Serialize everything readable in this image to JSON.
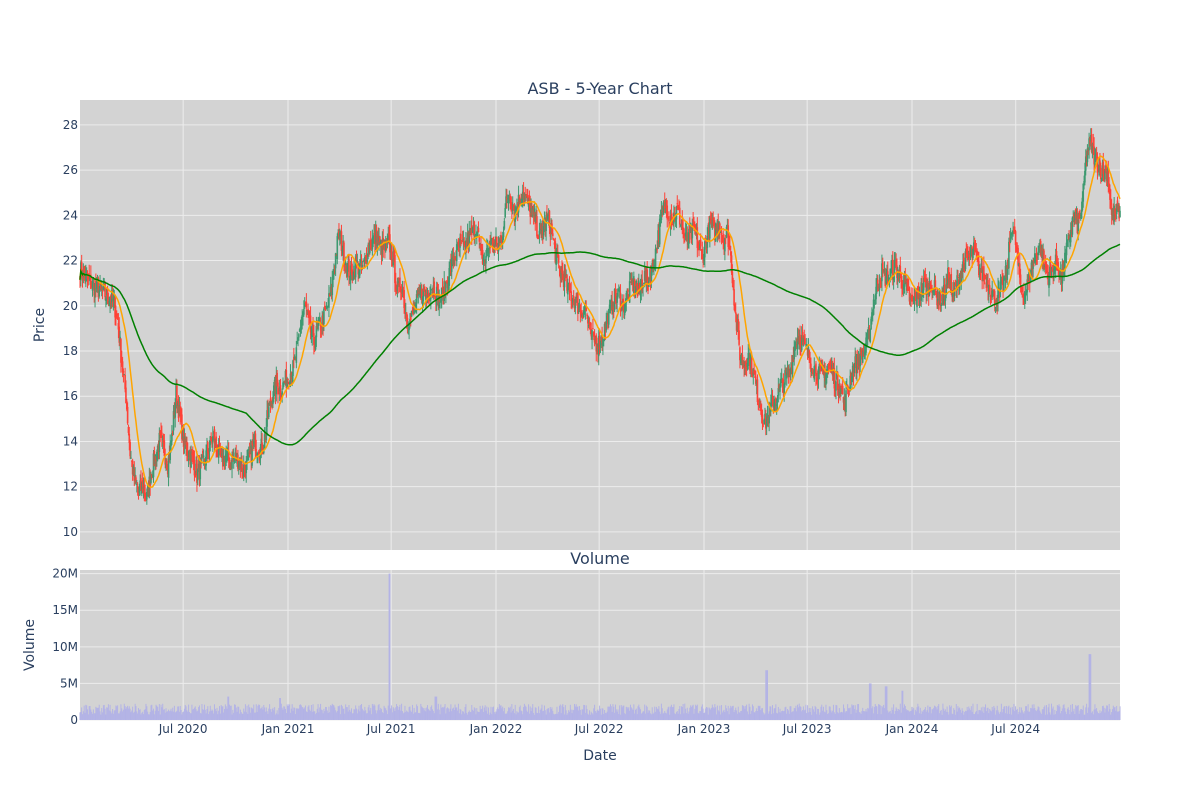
{
  "colors": {
    "plot_bg": "#d3d3d3",
    "grid": "#ececec",
    "increasing": "#3d9970",
    "decreasing": "#ff4136",
    "ma_short": "#ffa500",
    "ma_long": "#008000",
    "volume": "#b3b3e6",
    "text": "#2a3f5f"
  },
  "chart_data": [
    {
      "type": "candlestick",
      "title": "ASB - 5-Year Chart",
      "ylabel": "Price",
      "xlim": [
        "2020-01-02",
        "2024-12-31"
      ],
      "ylim": [
        9.2,
        29.1
      ],
      "yticks": [
        10,
        12,
        14,
        16,
        18,
        20,
        22,
        24,
        26,
        28
      ],
      "grid": true,
      "series": [
        {
          "kind": "ohlc_from_closes",
          "closes_weekly": [
            21.6,
            21.3,
            21.1,
            20.9,
            20.8,
            20.6,
            20.5,
            20.4,
            20.2,
            19.4,
            17.5,
            16.0,
            13.5,
            12.3,
            11.8,
            12.0,
            11.5,
            12.6,
            13.3,
            14.0,
            13.7,
            13.0,
            14.2,
            16.2,
            15.0,
            13.8,
            13.5,
            13.2,
            12.5,
            12.9,
            13.3,
            13.8,
            14.2,
            13.5,
            13.1,
            13.4,
            13.0,
            13.3,
            13.2,
            12.8,
            12.9,
            13.5,
            14.0,
            13.6,
            13.9,
            15.2,
            16.0,
            16.5,
            16.3,
            16.6,
            17.0,
            17.2,
            18.0,
            19.5,
            20.0,
            19.0,
            18.4,
            19.0,
            19.3,
            19.8,
            20.5,
            22.0,
            23.2,
            22.5,
            21.7,
            21.3,
            21.9,
            21.6,
            21.8,
            22.6,
            22.9,
            23.0,
            22.6,
            22.5,
            22.8,
            22.0,
            20.5,
            21.0,
            19.7,
            19.3,
            19.8,
            20.3,
            20.6,
            20.4,
            20.9,
            20.7,
            20.3,
            20.5,
            21.2,
            21.8,
            22.3,
            22.7,
            22.5,
            23.0,
            23.2,
            23.5,
            22.2,
            22.0,
            22.8,
            22.7,
            22.6,
            23.0,
            24.5,
            25.0,
            24.2,
            24.6,
            25.1,
            24.6,
            24.2,
            23.8,
            23.0,
            23.5,
            23.9,
            23.2,
            22.1,
            21.5,
            21.2,
            20.6,
            20.4,
            20.1,
            19.7,
            20.0,
            18.8,
            18.5,
            18.3,
            18.6,
            19.2,
            19.8,
            20.3,
            20.5,
            20.0,
            20.4,
            20.9,
            21.0,
            20.6,
            21.3,
            21.0,
            21.6,
            22.6,
            23.7,
            24.5,
            24.1,
            23.8,
            24.3,
            23.6,
            22.9,
            23.0,
            23.4,
            22.7,
            22.2,
            22.9,
            23.6,
            23.3,
            23.8,
            22.9,
            23.3,
            21.8,
            19.5,
            17.9,
            17.4,
            17.8,
            17.2,
            16.3,
            15.5,
            14.8,
            15.2,
            15.8,
            16.0,
            16.5,
            16.8,
            17.0,
            18.2,
            18.7,
            18.4,
            18.0,
            17.5,
            17.2,
            17.0,
            16.9,
            17.3,
            17.2,
            16.5,
            16.6,
            15.6,
            16.5,
            17.2,
            17.5,
            17.8,
            18.0,
            18.9,
            20.2,
            21.1,
            21.5,
            21.2,
            21.4,
            21.7,
            21.5,
            21.1,
            20.7,
            20.1,
            20.3,
            20.6,
            20.9,
            20.8,
            21.0,
            20.5,
            20.2,
            20.6,
            21.4,
            20.3,
            21.0,
            21.6,
            22.0,
            22.1,
            22.4,
            21.8,
            21.4,
            21.2,
            20.8,
            20.3,
            20.5,
            20.9,
            21.6,
            23.6,
            22.8,
            21.1,
            20.5,
            21.0,
            21.8,
            22.4,
            22.6,
            21.7,
            21.3,
            21.6,
            22.0,
            21.2,
            22.2,
            23.2,
            24.0,
            23.5,
            24.5,
            26.8,
            27.2,
            26.5,
            26.2,
            25.8,
            26.0,
            24.0,
            24.1,
            24.2
          ]
        },
        {
          "name": "",
          "kind": "moving_average",
          "window_weeks": 4,
          "color": "#ffa500"
        },
        {
          "name": "",
          "kind": "moving_average",
          "window_weeks": 40,
          "color": "#008000"
        }
      ]
    },
    {
      "type": "bar",
      "title": "Volume",
      "xlabel": "Date",
      "ylabel": "Volume",
      "ylim": [
        0,
        20500000
      ],
      "yticks": [
        0,
        5000000,
        10000000,
        15000000,
        20000000
      ],
      "ytick_labels": [
        "0",
        "5M",
        "10M",
        "15M",
        "20M"
      ],
      "xtick_dates": [
        "2020-07-01",
        "2021-01-01",
        "2021-07-01",
        "2022-01-01",
        "2022-07-01",
        "2023-01-01",
        "2023-07-01",
        "2024-01-01",
        "2024-07-01"
      ],
      "xtick_labels": [
        "Jul 2020",
        "Jan 2021",
        "Jul 2021",
        "Jan 2022",
        "Jul 2022",
        "Jan 2023",
        "Jul 2023",
        "Jan 2024",
        "Jul 2024"
      ],
      "spikes": [
        {
          "date": "2021-06-28",
          "value": 20000000
        },
        {
          "date": "2024-11-08",
          "value": 9000000
        },
        {
          "date": "2023-04-21",
          "value": 6800000
        },
        {
          "date": "2023-10-20",
          "value": 5000000
        },
        {
          "date": "2023-11-17",
          "value": 4600000
        },
        {
          "date": "2023-12-15",
          "value": 4000000
        },
        {
          "date": "2020-12-18",
          "value": 3000000
        },
        {
          "date": "2021-09-17",
          "value": 3200000
        },
        {
          "date": "2020-09-18",
          "value": 3200000
        }
      ],
      "base_volume": 1400000
    }
  ]
}
